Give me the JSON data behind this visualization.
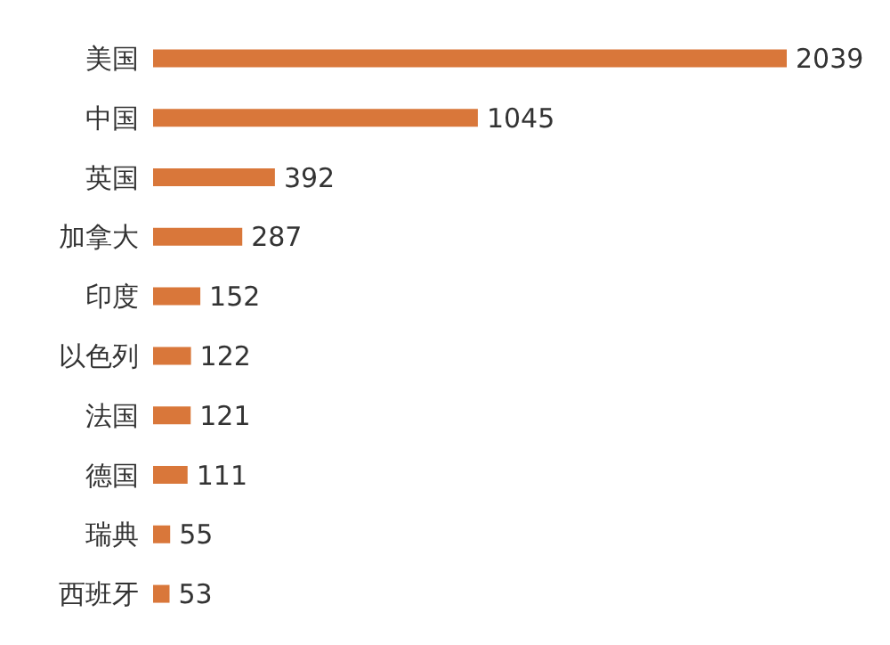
{
  "chart_data": {
    "type": "bar",
    "orientation": "horizontal",
    "categories": [
      "美国",
      "中国",
      "英国",
      "加拿大",
      "印度",
      "以色列",
      "法国",
      "德国",
      "瑞典",
      "西班牙"
    ],
    "values": [
      2039,
      1045,
      392,
      287,
      152,
      122,
      121,
      111,
      55,
      53
    ],
    "color": "#d9773a",
    "data_labels": true
  }
}
